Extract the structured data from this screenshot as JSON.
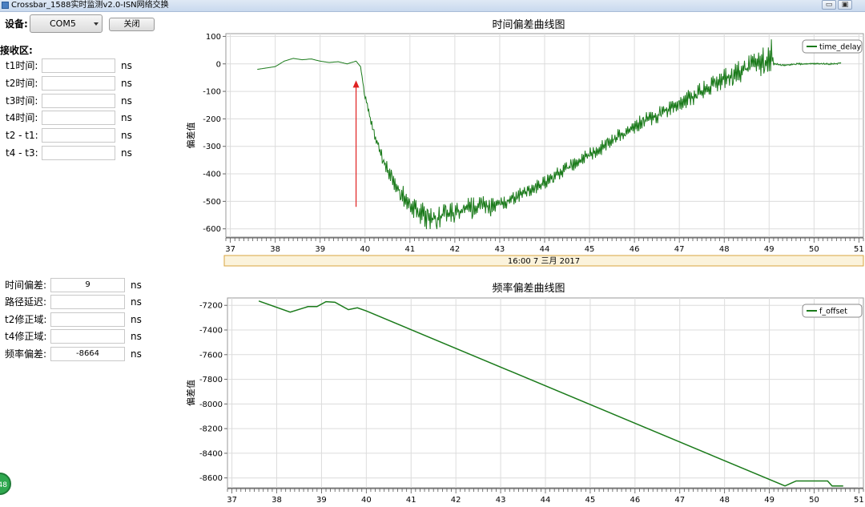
{
  "window": {
    "title": "Crossbar_1588实时监测v2.0-ISN网络交换",
    "minimize_glyph": "▭",
    "maximize_glyph": "▣"
  },
  "device": {
    "label": "设备:",
    "port": "COM5",
    "close_button": "关闭"
  },
  "receive": {
    "section_label": "接收区:",
    "fields": [
      {
        "label": "t1时间:",
        "value": "",
        "unit": "ns"
      },
      {
        "label": "t2时间:",
        "value": "",
        "unit": "ns"
      },
      {
        "label": "t3时间:",
        "value": "",
        "unit": "ns"
      },
      {
        "label": "t4时间:",
        "value": "",
        "unit": "ns"
      },
      {
        "label": "t2 - t1:",
        "value": "",
        "unit": "ns"
      },
      {
        "label": "t4 - t3:",
        "value": "",
        "unit": "ns"
      }
    ]
  },
  "results": {
    "fields": [
      {
        "label": "时间偏差:",
        "value": "9",
        "unit": "ns"
      },
      {
        "label": "路径延迟:",
        "value": "",
        "unit": "ns"
      },
      {
        "label": "t2修正域:",
        "value": "",
        "unit": "ns"
      },
      {
        "label": "t4修正域:",
        "value": "",
        "unit": "ns"
      },
      {
        "label": "频率偏差:",
        "value": "-8664",
        "unit": "ns"
      }
    ]
  },
  "badge": {
    "text": "48"
  },
  "chart_data": [
    {
      "type": "line",
      "title": "时间偏差曲线图",
      "ylabel": "偏差值",
      "xlabel": "",
      "date_label": "16:00 7 三月 2017",
      "ylim": [
        -630,
        110
      ],
      "xlim": [
        36.9,
        51.1
      ],
      "yticks": [
        100,
        0,
        -100,
        -200,
        -300,
        -400,
        -500,
        -600
      ],
      "xticks": [
        37,
        38,
        39,
        40,
        41,
        42,
        43,
        44,
        45,
        46,
        47,
        48,
        49,
        50,
        51
      ],
      "grid": true,
      "legend_position": "top-right",
      "annotation": {
        "type": "arrow",
        "color": "#e02020",
        "from": [
          39.8,
          -520
        ],
        "to": [
          39.8,
          -60
        ]
      },
      "series": [
        {
          "name": "time_delay",
          "color": "#1a7a1a",
          "x": [
            37.6,
            37.8,
            38.0,
            38.2,
            38.4,
            38.6,
            38.8,
            39.0,
            39.2,
            39.4,
            39.6,
            39.8,
            39.9,
            40.0,
            40.2,
            40.4,
            40.6,
            40.8,
            41.0,
            41.2,
            41.4,
            41.6,
            41.8,
            42.0,
            42.2,
            42.4,
            42.6,
            42.8,
            43.0,
            43.4,
            43.8,
            44.2,
            44.6,
            45.0,
            45.4,
            45.8,
            46.2,
            46.6,
            47.0,
            47.4,
            47.8,
            48.2,
            48.6,
            48.9,
            49.05,
            49.1,
            49.3,
            49.6,
            49.9,
            50.2,
            50.5,
            50.6
          ],
          "y": [
            -20,
            -15,
            -10,
            10,
            20,
            15,
            18,
            10,
            5,
            8,
            0,
            10,
            -10,
            -120,
            -250,
            -350,
            -420,
            -470,
            -510,
            -540,
            -560,
            -560,
            -550,
            -540,
            -530,
            -520,
            -510,
            -520,
            -510,
            -480,
            -450,
            -410,
            -370,
            -330,
            -290,
            -250,
            -210,
            -180,
            -140,
            -110,
            -70,
            -40,
            -10,
            10,
            30,
            0,
            -5,
            0,
            0,
            0,
            0,
            5
          ],
          "noise": [
            0,
            0,
            0,
            0,
            0,
            0,
            0,
            0,
            0,
            0,
            0,
            0,
            0,
            10,
            20,
            25,
            30,
            35,
            40,
            45,
            50,
            50,
            40,
            40,
            45,
            45,
            40,
            35,
            30,
            25,
            25,
            25,
            25,
            25,
            30,
            30,
            30,
            30,
            30,
            35,
            35,
            40,
            45,
            55,
            60,
            5,
            3,
            3,
            3,
            3,
            3,
            3
          ]
        }
      ]
    },
    {
      "type": "line",
      "title": "频率偏差曲线图",
      "ylabel": "偏差值",
      "xlabel": "",
      "ylim": [
        -8680,
        -7140
      ],
      "xlim": [
        36.9,
        51.1
      ],
      "yticks": [
        -7200,
        -7400,
        -7600,
        -7800,
        -8000,
        -8200,
        -8400,
        -8600
      ],
      "xticks": [
        37,
        38,
        39,
        40,
        41,
        42,
        43,
        44,
        45,
        46,
        47,
        48,
        49,
        50,
        51
      ],
      "grid": true,
      "legend_position": "top-right",
      "series": [
        {
          "name": "f_offset",
          "color": "#1a7a1a",
          "x": [
            37.6,
            38.3,
            38.7,
            38.9,
            39.1,
            39.3,
            39.6,
            39.8,
            40.0,
            49.35,
            49.6,
            50.3,
            50.4,
            50.65
          ],
          "y": [
            -7165,
            -7255,
            -7210,
            -7210,
            -7170,
            -7175,
            -7235,
            -7220,
            -7245,
            -8665,
            -8625,
            -8625,
            -8665,
            -8665
          ]
        }
      ]
    }
  ]
}
